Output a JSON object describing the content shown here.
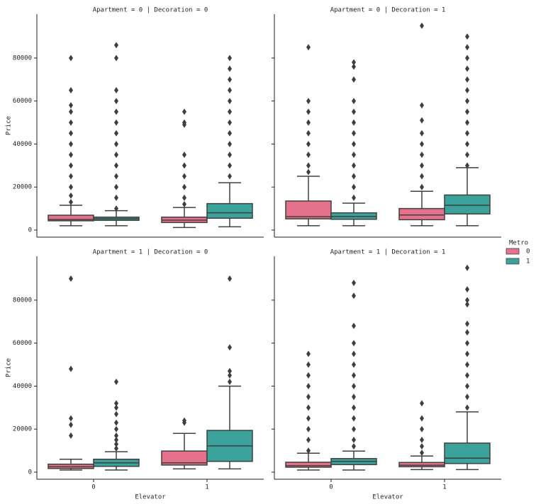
{
  "chart_data": [
    {
      "type": "box",
      "title": "Apartment = 0 | Decoration = 0",
      "ylabel": "Price",
      "legend_title": "Metro",
      "ylim": [
        -3300,
        100400
      ],
      "yticks": [
        0,
        20000,
        40000,
        60000,
        80000
      ],
      "series": [
        {
          "name": "0",
          "color": "#e5728a",
          "boxes": [
            {
              "whislo": 2000,
              "q1": 4300,
              "med": 4900,
              "q3": 6900,
              "whishi": 11500,
              "fliers": [
                13000,
                16000,
                20000,
                25000,
                30000,
                35000,
                40000,
                45000,
                50000,
                55000,
                58000,
                65000,
                80000
              ]
            },
            {
              "whislo": 1200,
              "q1": 3500,
              "med": 4600,
              "q3": 6000,
              "whishi": 10500,
              "fliers": [
                12000,
                15000,
                20000,
                25000,
                30000,
                35000,
                49000,
                50000,
                55000
              ]
            }
          ]
        },
        {
          "name": "1",
          "color": "#3ba39c",
          "boxes": [
            {
              "whislo": 2000,
              "q1": 4500,
              "med": 5200,
              "q3": 6000,
              "whishi": 9000,
              "fliers": [
                10000,
                15000,
                20000,
                25000,
                30000,
                35000,
                40000,
                45000,
                50000,
                55000,
                60000,
                65000,
                80000,
                86000
              ]
            },
            {
              "whislo": 1500,
              "q1": 5500,
              "med": 8000,
              "q3": 12300,
              "whishi": 22000,
              "fliers": [
                25000,
                30000,
                35000,
                40000,
                45000,
                50000,
                55000,
                60000,
                65000,
                70000,
                75000,
                80000
              ]
            }
          ]
        }
      ]
    },
    {
      "type": "box",
      "title": "Apartment = 0 | Decoration = 1",
      "ylim": [
        -3300,
        100400
      ],
      "yticks": [
        0,
        20000,
        40000,
        60000,
        80000
      ],
      "series": [
        {
          "name": "0",
          "color": "#e5728a",
          "boxes": [
            {
              "whislo": 2000,
              "q1": 5200,
              "med": 6200,
              "q3": 13500,
              "whishi": 25000,
              "fliers": [
                27000,
                30000,
                35000,
                40000,
                45000,
                50000,
                55000,
                60000,
                85000
              ]
            },
            {
              "whislo": 2000,
              "q1": 4800,
              "med": 7000,
              "q3": 10000,
              "whishi": 18000,
              "fliers": [
                20000,
                25000,
                30000,
                35000,
                40000,
                45000,
                51000,
                58000,
                95000
              ]
            }
          ]
        },
        {
          "name": "1",
          "color": "#3ba39c",
          "boxes": [
            {
              "whislo": 2000,
              "q1": 5000,
              "med": 6300,
              "q3": 8000,
              "whishi": 12500,
              "fliers": [
                15000,
                20000,
                25000,
                30000,
                35000,
                40000,
                45000,
                50000,
                55000,
                60000,
                70000,
                76000,
                78000
              ]
            },
            {
              "whislo": 2000,
              "q1": 7500,
              "med": 11500,
              "q3": 16300,
              "whishi": 29000,
              "fliers": [
                30000,
                35000,
                40000,
                45000,
                50000,
                55000,
                60000,
                65000,
                70000,
                75000,
                80000,
                85000,
                90000
              ]
            }
          ]
        }
      ]
    },
    {
      "type": "box",
      "title": "Apartment = 1 | Decoration = 0",
      "ylabel": "Price",
      "xlabel": "Elevator",
      "categories": [
        "0",
        "1"
      ],
      "ylim": [
        -3300,
        100400
      ],
      "yticks": [
        0,
        20000,
        40000,
        60000,
        80000
      ],
      "series": [
        {
          "name": "0",
          "color": "#e5728a",
          "boxes": [
            {
              "whislo": 1000,
              "q1": 1700,
              "med": 2500,
              "q3": 3700,
              "whishi": 6000,
              "fliers": [
                17000,
                22000,
                25000,
                48000,
                90000
              ]
            },
            {
              "whislo": 1500,
              "q1": 3300,
              "med": 4300,
              "q3": 9800,
              "whishi": 18000,
              "fliers": [
                23000,
                24000
              ]
            }
          ]
        },
        {
          "name": "1",
          "color": "#3ba39c",
          "boxes": [
            {
              "whislo": 1000,
              "q1": 2700,
              "med": 4300,
              "q3": 6000,
              "whishi": 9500,
              "fliers": [
                11000,
                13000,
                15000,
                17000,
                20000,
                23000,
                27000,
                30000,
                32000,
                42000
              ]
            },
            {
              "whislo": 1500,
              "q1": 5000,
              "med": 12200,
              "q3": 19400,
              "whishi": 40000,
              "fliers": [
                42000,
                45000,
                47000,
                58000,
                90000
              ]
            }
          ]
        }
      ]
    },
    {
      "type": "box",
      "title": "Apartment = 1 | Decoration = 1",
      "xlabel": "Elevator",
      "categories": [
        "0",
        "1"
      ],
      "ylim": [
        -3300,
        100400
      ],
      "yticks": [
        0,
        20000,
        40000,
        60000,
        80000
      ],
      "series": [
        {
          "name": "0",
          "color": "#e5728a",
          "boxes": [
            {
              "whislo": 1000,
              "q1": 2300,
              "med": 3000,
              "q3": 4600,
              "whishi": 8800,
              "fliers": [
                10000,
                15000,
                20000,
                25000,
                30000,
                35000,
                40000,
                45000,
                50000,
                55000
              ]
            },
            {
              "whislo": 1200,
              "q1": 2500,
              "med": 3200,
              "q3": 4500,
              "whishi": 7500,
              "fliers": [
                9000,
                12000,
                15000,
                20000,
                25000,
                32000
              ]
            }
          ]
        },
        {
          "name": "1",
          "color": "#3ba39c",
          "boxes": [
            {
              "whislo": 1000,
              "q1": 3500,
              "med": 5000,
              "q3": 6300,
              "whishi": 9800,
              "fliers": [
                12000,
                15000,
                20000,
                25000,
                30000,
                35000,
                40000,
                45000,
                50000,
                55000,
                60000,
                68000,
                82000,
                88000
              ]
            },
            {
              "whislo": 1200,
              "q1": 4000,
              "med": 6500,
              "q3": 13500,
              "whishi": 28000,
              "fliers": [
                30000,
                35000,
                40000,
                45000,
                50000,
                55000,
                60000,
                65000,
                69000,
                78000,
                80000,
                85000,
                95000
              ]
            }
          ]
        }
      ]
    }
  ]
}
